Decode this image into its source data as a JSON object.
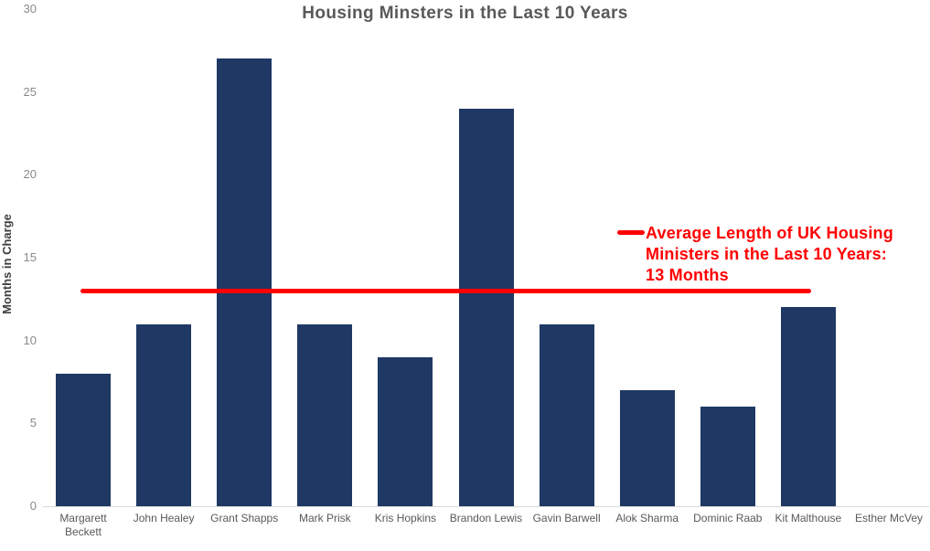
{
  "chart_data": {
    "type": "bar",
    "title": "Housing Minsters in the Last 10 Years",
    "xlabel": "",
    "ylabel": "Months in Charge",
    "categories": [
      "Margarett Beckett",
      "John Healey",
      "Grant Shapps",
      "Mark Prisk",
      "Kris Hopkins",
      "Brandon Lewis",
      "Gavin Barwell",
      "Alok Sharma",
      "Dominic Raab",
      "Kit Malthouse",
      "Esther McVey"
    ],
    "values": [
      8,
      11,
      27,
      11,
      9,
      24,
      11,
      7,
      6,
      12,
      0
    ],
    "ylim": [
      0,
      30
    ],
    "yticks": [
      0,
      5,
      10,
      15,
      20,
      25,
      30
    ],
    "grid": false,
    "legend_position": "none",
    "colors": {
      "bar": "#1f3864",
      "average_line": "#ff0000",
      "title": "#595959",
      "tick_labels": "#8a8a8a",
      "category_labels": "#595959",
      "y_axis_title": "#404040",
      "axis_line": "#d9d9d9"
    },
    "average_line": {
      "value": 13,
      "label": "Average Length of UK Housing Ministers in the Last 10 Years: 13 Months",
      "annotation_lines": [
        "Average Length of UK Housing",
        "Ministers in the Last 10 Years:",
        "13 Months"
      ]
    }
  }
}
